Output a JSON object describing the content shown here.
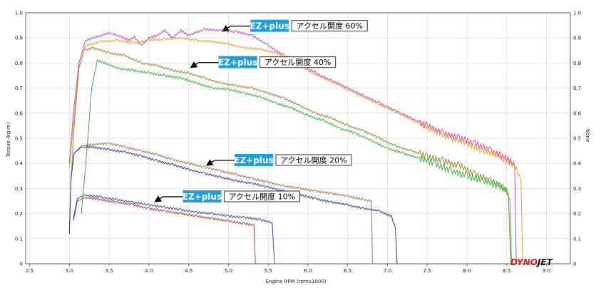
{
  "chart_data": {
    "type": "line",
    "xlabel": "Engine RPM (rpmx1000)",
    "ylabel": "Torque (kg-m)",
    "y2label": "None",
    "xlim": [
      2.45,
      9.3
    ],
    "ylim": [
      0,
      1.0
    ],
    "xticks": [
      "2.5",
      "3.0",
      "3.5",
      "4.0",
      "4.5",
      "5.0",
      "5.5",
      "6.0",
      "6.5",
      "7.0",
      "7.5",
      "8.0",
      "8.5",
      "9.0"
    ],
    "yticks": [
      "0",
      "0.1",
      "0.2",
      "0.3",
      "0.4",
      "0.5",
      "0.6",
      "0.7",
      "0.8",
      "0.9",
      "1.0"
    ],
    "grid": true,
    "series": [
      {
        "color": "#d946c8",
        "points": [
          [
            3.0,
            0.4
          ],
          [
            3.05,
            0.6
          ],
          [
            3.12,
            0.8
          ],
          [
            3.2,
            0.89
          ],
          [
            3.35,
            0.905
          ],
          [
            3.5,
            0.92
          ],
          [
            3.65,
            0.905
          ],
          [
            3.75,
            0.89
          ],
          [
            3.82,
            0.905
          ],
          [
            3.9,
            0.87
          ],
          [
            4.0,
            0.9
          ],
          [
            4.1,
            0.91
          ],
          [
            4.2,
            0.93
          ],
          [
            4.3,
            0.9
          ],
          [
            4.4,
            0.93
          ],
          [
            4.5,
            0.91
          ],
          [
            4.7,
            0.935
          ],
          [
            4.9,
            0.93
          ],
          [
            5.1,
            0.925
          ],
          [
            5.3,
            0.91
          ],
          [
            5.5,
            0.87
          ],
          [
            5.7,
            0.83
          ],
          [
            5.9,
            0.8
          ],
          [
            6.1,
            0.76
          ],
          [
            6.3,
            0.73
          ],
          [
            6.5,
            0.7
          ],
          [
            6.7,
            0.67
          ],
          [
            6.9,
            0.64
          ],
          [
            7.1,
            0.61
          ],
          [
            7.3,
            0.58
          ],
          [
            7.5,
            0.55
          ],
          [
            7.7,
            0.52
          ],
          [
            7.9,
            0.5
          ],
          [
            8.1,
            0.48
          ],
          [
            8.3,
            0.45
          ],
          [
            8.45,
            0.43
          ],
          [
            8.55,
            0.41
          ],
          [
            8.6,
            0.39
          ],
          [
            8.62,
            0.0
          ]
        ]
      },
      {
        "color": "#f0a030",
        "points": [
          [
            3.0,
            0.38
          ],
          [
            3.05,
            0.56
          ],
          [
            3.12,
            0.78
          ],
          [
            3.2,
            0.87
          ],
          [
            3.4,
            0.885
          ],
          [
            3.6,
            0.89
          ],
          [
            3.8,
            0.88
          ],
          [
            4.0,
            0.89
          ],
          [
            4.2,
            0.895
          ],
          [
            4.4,
            0.9
          ],
          [
            4.6,
            0.89
          ],
          [
            4.8,
            0.885
          ],
          [
            5.0,
            0.875
          ],
          [
            5.2,
            0.86
          ],
          [
            5.4,
            0.855
          ],
          [
            5.6,
            0.84
          ],
          [
            5.8,
            0.81
          ],
          [
            6.0,
            0.77
          ],
          [
            6.2,
            0.74
          ],
          [
            6.4,
            0.71
          ],
          [
            6.6,
            0.68
          ],
          [
            6.8,
            0.65
          ],
          [
            7.0,
            0.62
          ],
          [
            7.2,
            0.59
          ],
          [
            7.4,
            0.56
          ],
          [
            7.6,
            0.53
          ],
          [
            7.8,
            0.5
          ],
          [
            8.0,
            0.48
          ],
          [
            8.2,
            0.45
          ],
          [
            8.4,
            0.43
          ],
          [
            8.55,
            0.4
          ],
          [
            8.62,
            0.38
          ],
          [
            8.68,
            0.33
          ],
          [
            8.7,
            0.0
          ]
        ]
      },
      {
        "color": "#9a8a3a",
        "points": [
          [
            3.02,
            0.33
          ],
          [
            3.06,
            0.55
          ],
          [
            3.12,
            0.78
          ],
          [
            3.18,
            0.85
          ],
          [
            3.3,
            0.86
          ],
          [
            3.5,
            0.84
          ],
          [
            3.7,
            0.83
          ],
          [
            3.9,
            0.8
          ],
          [
            4.1,
            0.79
          ],
          [
            4.3,
            0.77
          ],
          [
            4.5,
            0.76
          ],
          [
            4.7,
            0.74
          ],
          [
            4.9,
            0.72
          ],
          [
            5.1,
            0.71
          ],
          [
            5.3,
            0.7
          ],
          [
            5.5,
            0.68
          ],
          [
            5.7,
            0.66
          ],
          [
            5.9,
            0.63
          ],
          [
            6.1,
            0.6
          ],
          [
            6.3,
            0.58
          ],
          [
            6.5,
            0.55
          ],
          [
            6.7,
            0.53
          ],
          [
            6.9,
            0.5
          ],
          [
            7.1,
            0.47
          ],
          [
            7.3,
            0.45
          ],
          [
            7.5,
            0.43
          ],
          [
            7.7,
            0.41
          ],
          [
            7.9,
            0.39
          ],
          [
            8.1,
            0.36
          ],
          [
            8.3,
            0.33
          ],
          [
            8.45,
            0.31
          ],
          [
            8.52,
            0.28
          ],
          [
            8.55,
            0.0
          ]
        ]
      },
      {
        "color": "#3cb83c",
        "points": [
          [
            3.15,
            0.2
          ],
          [
            3.22,
            0.45
          ],
          [
            3.28,
            0.7
          ],
          [
            3.35,
            0.81
          ],
          [
            3.45,
            0.8
          ],
          [
            3.6,
            0.78
          ],
          [
            3.8,
            0.77
          ],
          [
            4.0,
            0.76
          ],
          [
            4.2,
            0.75
          ],
          [
            4.4,
            0.74
          ],
          [
            4.6,
            0.72
          ],
          [
            4.8,
            0.7
          ],
          [
            5.0,
            0.695
          ],
          [
            5.2,
            0.68
          ],
          [
            5.4,
            0.665
          ],
          [
            5.6,
            0.64
          ],
          [
            5.8,
            0.62
          ],
          [
            6.0,
            0.59
          ],
          [
            6.2,
            0.57
          ],
          [
            6.4,
            0.54
          ],
          [
            6.6,
            0.52
          ],
          [
            6.8,
            0.49
          ],
          [
            7.0,
            0.46
          ],
          [
            7.2,
            0.44
          ],
          [
            7.4,
            0.42
          ],
          [
            7.6,
            0.4
          ],
          [
            7.8,
            0.37
          ],
          [
            8.0,
            0.35
          ],
          [
            8.2,
            0.33
          ],
          [
            8.4,
            0.31
          ],
          [
            8.5,
            0.29
          ],
          [
            8.54,
            0.26
          ],
          [
            8.56,
            0.0
          ]
        ]
      },
      {
        "color": "#b07050",
        "points": [
          [
            3.0,
            0.13
          ],
          [
            3.02,
            0.35
          ],
          [
            3.06,
            0.44
          ],
          [
            3.15,
            0.47
          ],
          [
            3.3,
            0.475
          ],
          [
            3.5,
            0.48
          ],
          [
            3.7,
            0.465
          ],
          [
            3.9,
            0.45
          ],
          [
            4.1,
            0.435
          ],
          [
            4.3,
            0.415
          ],
          [
            4.5,
            0.4
          ],
          [
            4.7,
            0.385
          ],
          [
            4.9,
            0.37
          ],
          [
            5.1,
            0.355
          ],
          [
            5.3,
            0.34
          ],
          [
            5.5,
            0.325
          ],
          [
            5.7,
            0.31
          ],
          [
            5.9,
            0.3
          ],
          [
            6.1,
            0.29
          ],
          [
            6.3,
            0.28
          ],
          [
            6.5,
            0.27
          ],
          [
            6.7,
            0.255
          ],
          [
            6.8,
            0.25
          ],
          [
            6.81,
            0.0
          ]
        ]
      },
      {
        "color": "#2e3fa0",
        "points": [
          [
            3.0,
            0.12
          ],
          [
            3.02,
            0.34
          ],
          [
            3.06,
            0.44
          ],
          [
            3.15,
            0.465
          ],
          [
            3.3,
            0.465
          ],
          [
            3.5,
            0.455
          ],
          [
            3.7,
            0.445
          ],
          [
            3.9,
            0.43
          ],
          [
            4.1,
            0.41
          ],
          [
            4.3,
            0.395
          ],
          [
            4.5,
            0.375
          ],
          [
            4.7,
            0.36
          ],
          [
            4.9,
            0.345
          ],
          [
            5.1,
            0.33
          ],
          [
            5.3,
            0.32
          ],
          [
            5.5,
            0.305
          ],
          [
            5.7,
            0.29
          ],
          [
            5.9,
            0.275
          ],
          [
            6.1,
            0.26
          ],
          [
            6.3,
            0.245
          ],
          [
            6.5,
            0.235
          ],
          [
            6.7,
            0.22
          ],
          [
            6.9,
            0.21
          ],
          [
            7.05,
            0.19
          ],
          [
            7.1,
            0.14
          ],
          [
            7.12,
            0.0
          ]
        ]
      },
      {
        "color": "#3050b0",
        "points": [
          [
            3.05,
            0.18
          ],
          [
            3.1,
            0.26
          ],
          [
            3.2,
            0.275
          ],
          [
            3.4,
            0.265
          ],
          [
            3.6,
            0.255
          ],
          [
            3.8,
            0.245
          ],
          [
            4.0,
            0.235
          ],
          [
            4.2,
            0.225
          ],
          [
            4.4,
            0.215
          ],
          [
            4.6,
            0.205
          ],
          [
            4.8,
            0.2
          ],
          [
            5.0,
            0.19
          ],
          [
            5.2,
            0.185
          ],
          [
            5.4,
            0.175
          ],
          [
            5.55,
            0.165
          ],
          [
            5.58,
            0.0
          ]
        ]
      },
      {
        "color": "#dd3030",
        "points": [
          [
            3.05,
            0.17
          ],
          [
            3.1,
            0.25
          ],
          [
            3.2,
            0.265
          ],
          [
            3.4,
            0.255
          ],
          [
            3.6,
            0.245
          ],
          [
            3.8,
            0.235
          ],
          [
            4.0,
            0.22
          ],
          [
            4.2,
            0.21
          ],
          [
            4.4,
            0.2
          ],
          [
            4.6,
            0.19
          ],
          [
            4.8,
            0.18
          ],
          [
            5.0,
            0.17
          ],
          [
            5.2,
            0.16
          ],
          [
            5.32,
            0.155
          ],
          [
            5.34,
            0.0
          ]
        ]
      }
    ],
    "annotations": [
      {
        "badge": "EZ+plus",
        "text": "アクセル開度 60%",
        "x": 4.9,
        "y": 0.93
      },
      {
        "badge": "EZ+plus",
        "text": "アクセル開度 40%",
        "x": 4.5,
        "y": 0.785
      },
      {
        "badge": "EZ+plus",
        "text": "アクセル開度 20%",
        "x": 4.7,
        "y": 0.395
      },
      {
        "badge": "EZ+plus",
        "text": "アクセル開度 10%",
        "x": 4.05,
        "y": 0.25
      }
    ],
    "logo": "DYNOJET"
  },
  "colors": {
    "badge": "#1a9fe0",
    "grid": "#e2e2e2",
    "axis": "#666666",
    "logo_dyno": "#d42020",
    "logo_jet": "#111111"
  }
}
